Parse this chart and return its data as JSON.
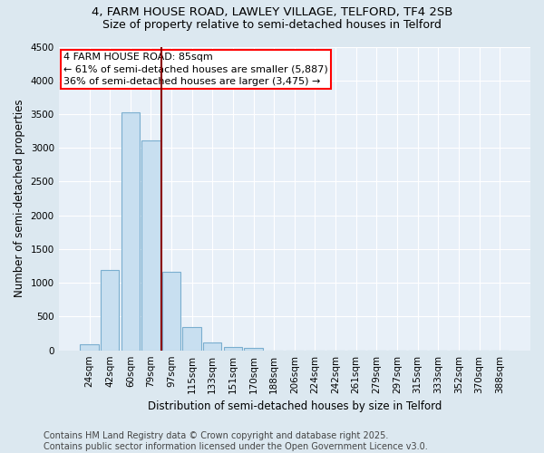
{
  "title_line1": "4, FARM HOUSE ROAD, LAWLEY VILLAGE, TELFORD, TF4 2SB",
  "title_line2": "Size of property relative to semi-detached houses in Telford",
  "xlabel": "Distribution of semi-detached houses by size in Telford",
  "ylabel": "Number of semi-detached properties",
  "categories": [
    "24sqm",
    "42sqm",
    "60sqm",
    "79sqm",
    "97sqm",
    "115sqm",
    "133sqm",
    "151sqm",
    "170sqm",
    "188sqm",
    "206sqm",
    "224sqm",
    "242sqm",
    "261sqm",
    "279sqm",
    "297sqm",
    "315sqm",
    "333sqm",
    "352sqm",
    "370sqm",
    "388sqm"
  ],
  "values": [
    90,
    1190,
    3520,
    3110,
    1160,
    340,
    110,
    55,
    40,
    0,
    0,
    0,
    0,
    0,
    0,
    0,
    0,
    0,
    0,
    0,
    0
  ],
  "bar_color": "#c8dff0",
  "bar_edge_color": "#7aaecf",
  "annotation_box_text_line1": "4 FARM HOUSE ROAD: 85sqm",
  "annotation_box_text_line2": "← 61% of semi-detached houses are smaller (5,887)",
  "annotation_box_text_line3": "36% of semi-detached houses are larger (3,475) →",
  "annotation_box_color": "white",
  "annotation_box_edge_color": "red",
  "vline_color": "#8b0000",
  "vline_x": 3.5,
  "ylim": [
    0,
    4500
  ],
  "yticks": [
    0,
    500,
    1000,
    1500,
    2000,
    2500,
    3000,
    3500,
    4000,
    4500
  ],
  "background_color": "#dce8f0",
  "plot_bg_color": "#e8f0f8",
  "footer_text": "Contains HM Land Registry data © Crown copyright and database right 2025.\nContains public sector information licensed under the Open Government Licence v3.0.",
  "title_fontsize": 9.5,
  "subtitle_fontsize": 9,
  "annotation_fontsize": 8,
  "footer_fontsize": 7,
  "axis_label_fontsize": 8.5,
  "tick_fontsize": 7.5
}
